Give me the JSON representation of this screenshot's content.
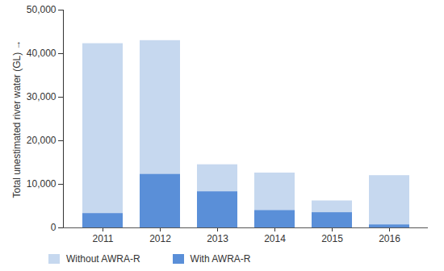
{
  "chart_data": {
    "type": "bar",
    "stacked": true,
    "categories": [
      "2011",
      "2012",
      "2013",
      "2014",
      "2015",
      "2016"
    ],
    "series": [
      {
        "name": "Without AWRA-R",
        "color": "#c6d8ef",
        "values": [
          39000,
          30700,
          6200,
          8600,
          2700,
          11300
        ]
      },
      {
        "name": "With AWRA-R",
        "color": "#5a8fd8",
        "values": [
          3300,
          12300,
          8300,
          4000,
          3500,
          700
        ]
      }
    ],
    "y_label": "Total unestimated river water (GL)",
    "ylim": [
      0,
      50000
    ],
    "yticks": [
      0,
      {
        "value": 10000,
        "label": "10,000"
      },
      {
        "value": 20000,
        "label": "20,000"
      },
      {
        "value": 30000,
        "label": "30,000"
      },
      {
        "value": 40000,
        "label": "40,000"
      },
      {
        "value": 50000,
        "label": "50,000"
      }
    ],
    "grid": false,
    "legend": "bottom"
  }
}
